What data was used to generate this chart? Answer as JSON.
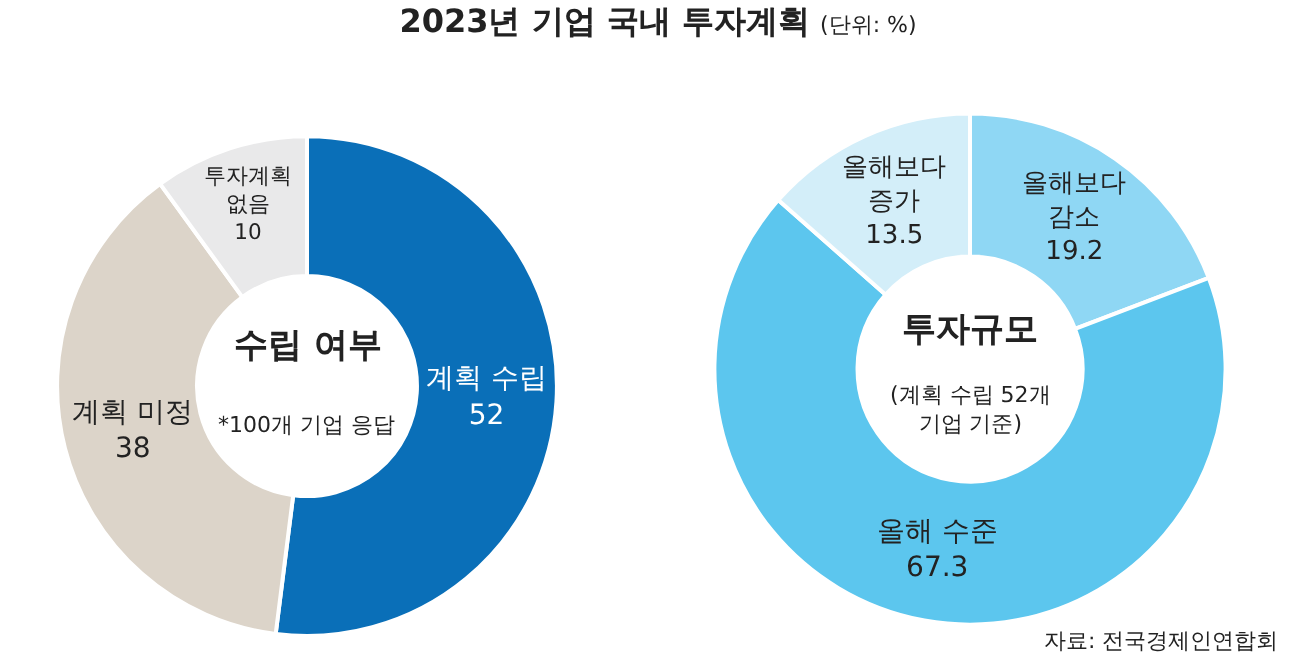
{
  "chart_data": [
    {
      "type": "other",
      "title": "2023년 기업 국내 투자계획",
      "subtitle": "(단위: %)"
    },
    {
      "type": "donut",
      "categories": [
        "계획 수립",
        "계획 미정",
        "투자계획 없음"
      ],
      "values": [
        52,
        38,
        10
      ],
      "colors": [
        "#0a6fb8",
        "#dcd4c9",
        "#e9e9ea"
      ],
      "data_labels": true,
      "annotations": [
        "수립 여부",
        "*100개 기업 응답"
      ]
    },
    {
      "type": "donut",
      "categories": [
        "올해보다 감소",
        "올해 수준",
        "올해보다 증가"
      ],
      "values": [
        19.2,
        67.3,
        13.5
      ],
      "colors": [
        "#8fd7f4",
        "#5cc6ee",
        "#d3eef9"
      ],
      "data_labels": true,
      "annotations": [
        "투자규모",
        "(계획 수립 52개 기업 기준)",
        "자료: 전국경제인연합회"
      ]
    }
  ]
}
